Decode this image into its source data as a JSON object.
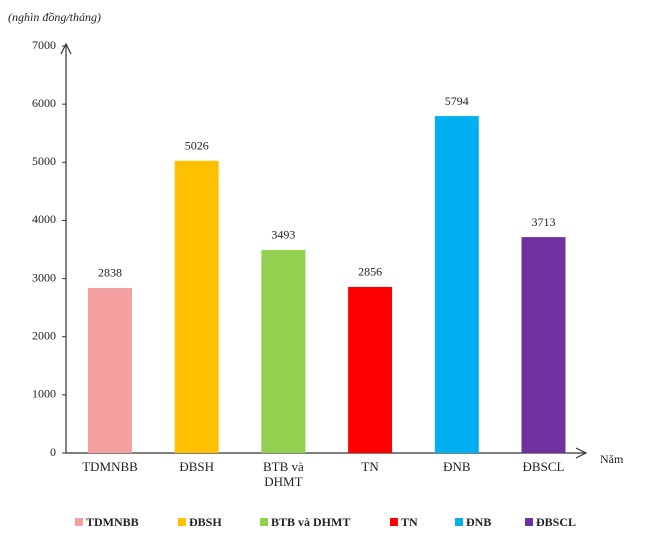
{
  "chart_data": {
    "type": "bar",
    "y_axis_label": "(nghìn đồng/tháng)",
    "x_axis_label": "Năm",
    "categories": [
      "TDMNBB",
      "ĐBSH",
      "BTB và DHMT",
      "TN",
      "ĐNB",
      "ĐBSCL"
    ],
    "values": [
      2838,
      5026,
      3493,
      2856,
      5794,
      3713
    ],
    "colors": [
      "#f4a0a0",
      "#ffc000",
      "#92d050",
      "#ff0000",
      "#00b0f0",
      "#7030a0"
    ],
    "ylim": [
      0,
      7000
    ],
    "yticks": [
      0,
      1000,
      2000,
      3000,
      4000,
      5000,
      6000,
      7000
    ],
    "grid": false,
    "legend": "bottom"
  }
}
